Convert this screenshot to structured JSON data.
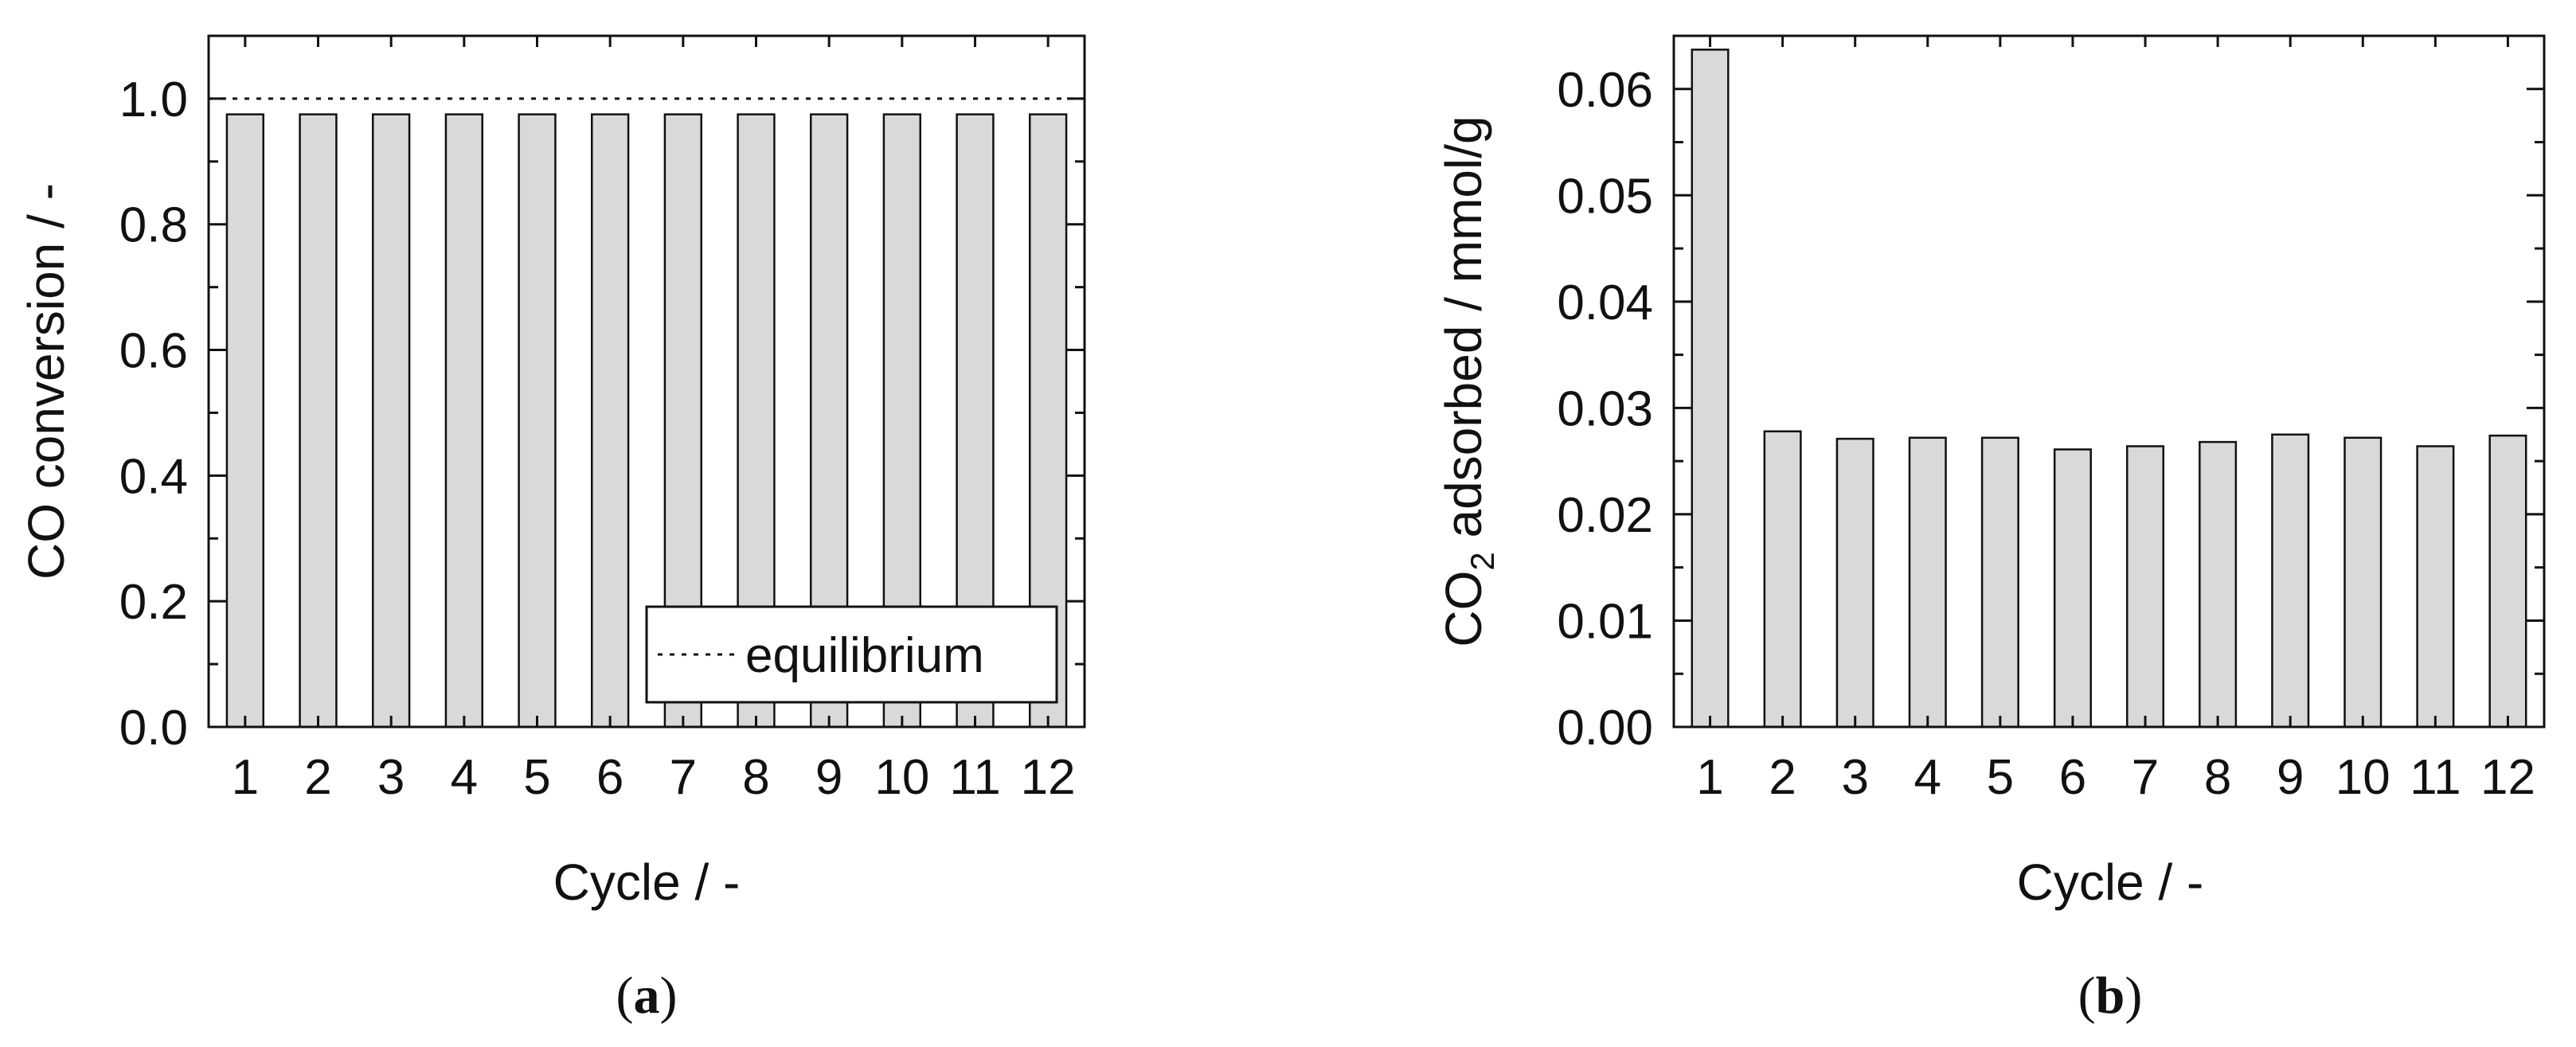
{
  "chart_data": [
    {
      "type": "bar",
      "panel_label": "a",
      "categories": [
        "1",
        "2",
        "3",
        "4",
        "5",
        "6",
        "7",
        "8",
        "9",
        "10",
        "11",
        "12"
      ],
      "values": [
        0.975,
        0.975,
        0.975,
        0.975,
        0.975,
        0.975,
        0.975,
        0.975,
        0.975,
        0.975,
        0.975,
        0.975
      ],
      "xlabel": "Cycle / -",
      "ylabel": "CO conversion / -",
      "ylim": [
        0,
        1.1
      ],
      "yticks": [
        "0.0",
        "0.2",
        "0.4",
        "0.6",
        "0.8",
        "1.0"
      ],
      "reference_line": {
        "y": 1.0,
        "style": "dotted",
        "label": "equilibrium"
      },
      "legend": {
        "placement": "bottom-right",
        "entries": [
          "equilibrium"
        ]
      },
      "bar_color": "#d9d9d9",
      "grid": false
    },
    {
      "type": "bar",
      "panel_label": "b",
      "categories": [
        "1",
        "2",
        "3",
        "4",
        "5",
        "6",
        "7",
        "8",
        "9",
        "10",
        "11",
        "12"
      ],
      "values": [
        0.0637,
        0.0278,
        0.0271,
        0.0272,
        0.0272,
        0.0261,
        0.0264,
        0.0268,
        0.0275,
        0.0272,
        0.0264,
        0.0274
      ],
      "xlabel": "Cycle / -",
      "ylabel": {
        "prefix": "CO",
        "subscript": "2",
        "suffix": " adsorbed / mmol/g"
      },
      "ylim": [
        0,
        0.065
      ],
      "yticks": [
        "0.00",
        "0.01",
        "0.02",
        "0.03",
        "0.04",
        "0.05",
        "0.06"
      ],
      "bar_color": "#d9d9d9",
      "grid": false
    }
  ]
}
